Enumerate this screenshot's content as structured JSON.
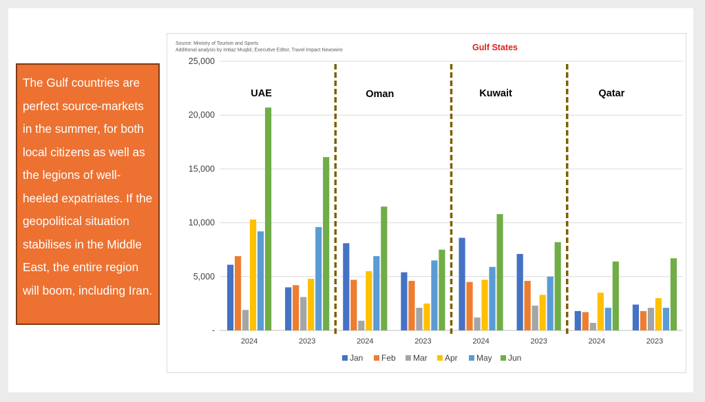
{
  "callout": {
    "text": "The Gulf countries are perfect source-markets in the summer, for both local citizens as well as the legions of well-heeled expatriates. If the geopolitical situation stabilises in the Middle East, the entire region will boom, including Iran."
  },
  "chart_data": {
    "type": "bar",
    "title": "Gulf States",
    "source_lines": [
      "Source: Ministry of Tourism and Sports",
      "Additional analysis by Imtiaz Muqbil, Executive Editor, Travel Impact Newswire"
    ],
    "ylim": [
      0,
      25000
    ],
    "yticks": [
      0,
      5000,
      10000,
      15000,
      20000,
      25000
    ],
    "ytick_labels": [
      "-",
      "5,000",
      "10,000",
      "15,000",
      "20,000",
      "25,000"
    ],
    "grid": true,
    "legend_position": "bottom",
    "groups": [
      "UAE",
      "Oman",
      "Kuwait",
      "Qatar"
    ],
    "categories": [
      "2024",
      "2023",
      "2024",
      "2023",
      "2024",
      "2023",
      "2024",
      "2023"
    ],
    "series": [
      {
        "name": "Jan",
        "color": "#4472c4",
        "values": [
          6100,
          4000,
          8100,
          5400,
          8600,
          7100,
          1800,
          2400
        ]
      },
      {
        "name": "Feb",
        "color": "#ed7d31",
        "values": [
          6900,
          4200,
          4700,
          4600,
          4500,
          4600,
          1700,
          1800
        ]
      },
      {
        "name": "Mar",
        "color": "#a5a5a5",
        "values": [
          1900,
          3100,
          900,
          2100,
          1200,
          2300,
          700,
          2100
        ]
      },
      {
        "name": "Apr",
        "color": "#ffc000",
        "values": [
          10300,
          4800,
          5500,
          2500,
          4700,
          3300,
          3500,
          3000
        ]
      },
      {
        "name": "May",
        "color": "#5b9bd5",
        "values": [
          9200,
          9600,
          6900,
          6500,
          5900,
          5000,
          2100,
          2100
        ]
      },
      {
        "name": "Jun",
        "color": "#70ad47",
        "values": [
          20700,
          16100,
          11500,
          7500,
          10800,
          8200,
          6400,
          6700
        ]
      }
    ],
    "divider_color": "#7f6000"
  }
}
